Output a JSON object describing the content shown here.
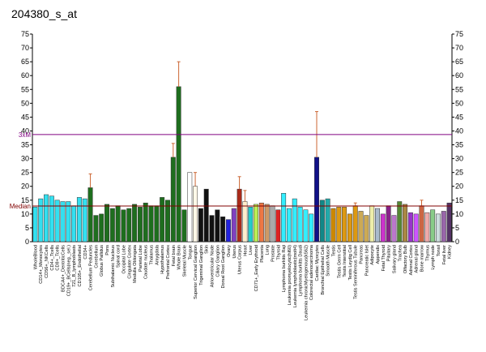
{
  "chart_data": {
    "type": "bar",
    "title": "204380_s_at",
    "categories": [
      "WholeBlood",
      "CD14+_Monocytes",
      "CD56+_NKCells",
      "CD4+_Tcells",
      "CD8+_Tcells",
      "BDCA4+_DentriticCells",
      "CD19+_BCells(neg._sel.)",
      "721_B_lymphoblasts",
      "CD105+_Endothelial",
      "CD34+",
      "Cerebellum Peduncles",
      "Cerebellum",
      "Globus Pallidus",
      "Pons",
      "Subthalamic Nucleus",
      "Spinal cord",
      "Occipital Lobe",
      "Cingulate Cortex",
      "Medulla Oblongata",
      "Parietal Lobe",
      "Caudate nucleus",
      "Thalamus",
      "Amygdala",
      "Hypothalamus",
      "Prefrontal Cortex",
      "Fetal brain",
      "Whole Brain",
      "Skeletal Muscle",
      "Tongue",
      "Superior Cervical Ganglion",
      "Trigeminal Ganglion",
      "Skin",
      "Atrioventricular Node",
      "Ciliary Ganglion",
      "Dorsal Root Ganglion",
      "Ovary",
      "Uterus",
      "Uterus Corpus",
      "Heart",
      "Liver",
      "CD71+_Early Erythroid",
      "Placenta",
      "Lung",
      "Prostate",
      "Thyroid",
      "Lymphoma burkitts Raji",
      "Leukemia promyelocytic(hl60)",
      "Leukemia lymphoblastic(molt4)",
      "Lymphoma burkitts Daudi",
      "Leukemia chronicMyelogenous(k562)",
      "Colorectal adenocarcinoma",
      "Cardiac Myocytes",
      "Bronchial Epithelial Cells",
      "Smooth Muscle",
      "Testis",
      "Testis Germ Cell",
      "Testis Interstitial",
      "Testis Leydig Cell",
      "Testis Seminiferous Tubule",
      "Pancreas",
      "Pancreatic Islet",
      "Adipocyte",
      "Appendix",
      "Fetal Thyroid",
      "Pituitary",
      "Salivary gland",
      "Trachea",
      "Olfactory Bulb",
      "Adrenal Cortex",
      "Adrenal gland",
      "Bone marrow",
      "Thymus",
      "Lymph node",
      "Tonsil",
      "Fetal liver",
      "Kidney"
    ],
    "values": [
      12.5,
      15.5,
      17,
      16.5,
      15,
      14.5,
      14.5,
      13,
      16,
      15.5,
      19.5,
      9.5,
      10,
      13.5,
      12,
      13,
      11.5,
      12,
      13.5,
      12.5,
      14,
      13,
      13,
      16,
      15,
      30.5,
      56,
      11.5,
      25,
      20,
      12,
      19,
      9.5,
      11.5,
      9,
      8,
      12,
      19,
      14.5,
      12.5,
      13.5,
      14,
      13.5,
      13,
      11.5,
      17.5,
      12,
      15.5,
      12.5,
      11.5,
      10,
      30.5,
      15,
      15.5,
      12,
      12.5,
      12.5,
      10,
      13,
      11,
      9.5,
      13,
      12,
      10,
      13,
      9.5,
      14.5,
      13.5,
      10.5,
      10,
      13,
      10.5,
      11.5,
      10,
      11,
      14
    ],
    "errors": [
      null,
      null,
      null,
      null,
      null,
      null,
      null,
      null,
      null,
      null,
      5,
      null,
      null,
      null,
      null,
      null,
      null,
      null,
      null,
      null,
      null,
      null,
      null,
      null,
      null,
      5,
      9,
      null,
      null,
      5,
      null,
      null,
      null,
      null,
      null,
      null,
      null,
      4.5,
      4,
      null,
      null,
      null,
      null,
      null,
      null,
      null,
      null,
      null,
      null,
      null,
      null,
      16.5,
      null,
      null,
      null,
      null,
      null,
      null,
      1,
      null,
      null,
      null,
      null,
      null,
      null,
      null,
      null,
      null,
      null,
      null,
      2,
      null,
      null,
      null,
      null,
      null
    ],
    "colors": [
      "#33e0f0",
      "#33e0f0",
      "#33e0f0",
      "#33e0f0",
      "#33e0f0",
      "#33e0f0",
      "#33e0f0",
      "#33e0f0",
      "#33e0f0",
      "#33e0f0",
      "#1e6e1e",
      "#1e6e1e",
      "#1e6e1e",
      "#1e6e1e",
      "#1e6e1e",
      "#1e6e1e",
      "#1e6e1e",
      "#1e6e1e",
      "#1e6e1e",
      "#1e6e1e",
      "#1e6e1e",
      "#1e6e1e",
      "#1e6e1e",
      "#1e6e1e",
      "#1e6e1e",
      "#1e6e1e",
      "#1e6e1e",
      "#1e6e1e",
      "#ffffff",
      "#fff8e8",
      "#111111",
      "#111111",
      "#111111",
      "#111111",
      "#111111",
      "#2222dd",
      "#8040c0",
      "#aa2a1a",
      "#ffeecc",
      "#22cccc",
      "#bbee55",
      "#ee7744",
      "#cc9966",
      "#aaaaaa",
      "#dd2222",
      "#33eeff",
      "#33eeff",
      "#33eeff",
      "#33eeff",
      "#33eeff",
      "#33eeff",
      "#111188",
      "#118888",
      "#22aaaa",
      "#cc8800",
      "#dd9911",
      "#dd9911",
      "#dd9911",
      "#dd9911",
      "#ccaa55",
      "#ccaa55",
      "#eeeeaa",
      "#aabbcc",
      "#cc33cc",
      "#882288",
      "#bb77cc",
      "#558833",
      "#aa8844",
      "#9933cc",
      "#cc55ff",
      "#cc6644",
      "#eeaaaa",
      "#88cc88",
      "#ccdddd",
      "#9966aa",
      "#553366"
    ],
    "hlines": [
      {
        "label": "3xM",
        "value": 38.7,
        "color": "#800080"
      },
      {
        "label": "Median",
        "value": 12.9,
        "color": "#800000"
      }
    ],
    "ylim": [
      0,
      75
    ],
    "yticks": [
      0,
      5,
      10,
      15,
      20,
      25,
      30,
      35,
      40,
      45,
      50,
      55,
      60,
      65,
      70,
      75
    ]
  }
}
